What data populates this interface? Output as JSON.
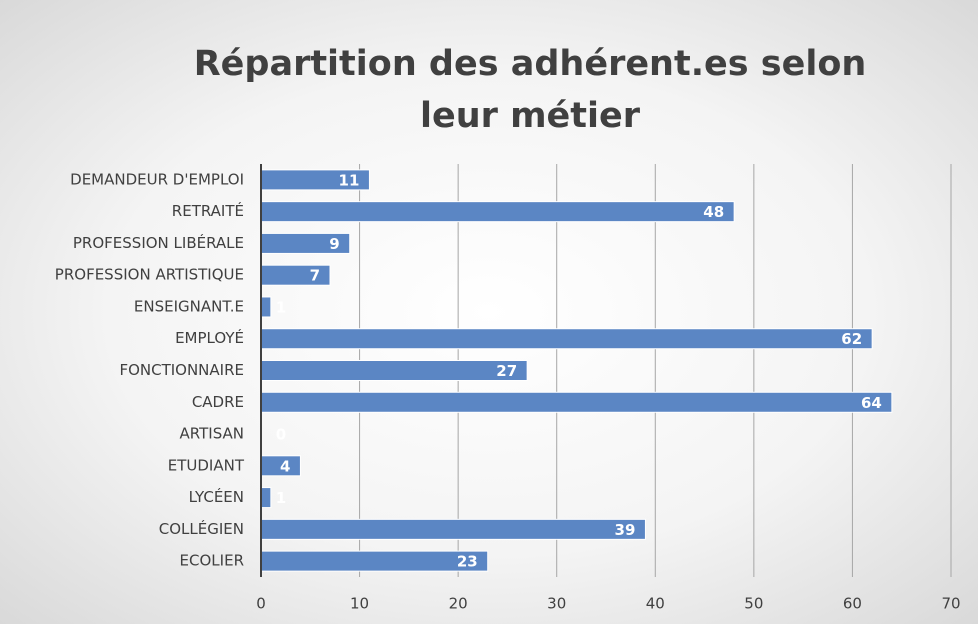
{
  "chart_data": {
    "type": "bar",
    "orientation": "horizontal",
    "title": "Répartition des adhérent.es selon leur métier",
    "categories": [
      "DEMANDEUR D'EMPLOI",
      "RETRAITÉ",
      "PROFESSION LIBÉRALE",
      "PROFESSION ARTISTIQUE",
      "ENSEIGNANT.E",
      "EMPLOYÉ",
      "FONCTIONNAIRE",
      "CADRE",
      "ARTISAN",
      "ETUDIANT",
      "LYCÉEN",
      "COLLÉGIEN",
      "ECOLIER"
    ],
    "values": [
      11,
      48,
      9,
      7,
      1,
      62,
      27,
      64,
      0,
      4,
      1,
      39,
      23
    ],
    "color": "#5b86c4",
    "xlim": [
      0,
      70
    ],
    "xticks": [
      0,
      10,
      20,
      30,
      40,
      50,
      60,
      70
    ],
    "grid": true
  }
}
